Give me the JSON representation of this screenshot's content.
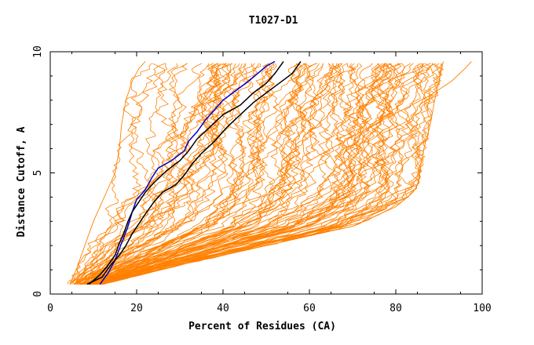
{
  "chart_data": {
    "type": "line",
    "title": "T1027-D1",
    "xlabel": "Percent of Residues (CA)",
    "ylabel": "Distance Cutoff, A",
    "xlim": [
      0,
      100
    ],
    "ylim": [
      0,
      10
    ],
    "x_ticks": [
      0,
      20,
      40,
      60,
      80,
      100
    ],
    "y_ticks": [
      0,
      5,
      10
    ],
    "grid": false,
    "legend": "none",
    "colors": {
      "background_models": "#ff8000",
      "highlight_blue": "#0000cc",
      "highlight_black": "#000000",
      "axes": "#000000"
    },
    "series": [
      {
        "name": "model-upper-envelope",
        "color": "#ff8000",
        "points": [
          [
            4.5,
            0.4
          ],
          [
            6,
            1.0
          ],
          [
            8,
            2.0
          ],
          [
            10,
            3.0
          ],
          [
            12,
            3.8
          ],
          [
            13.5,
            4.4
          ],
          [
            15,
            5.0
          ],
          [
            16,
            6.0
          ],
          [
            16.5,
            7.0
          ],
          [
            17.5,
            8.0
          ],
          [
            19,
            8.8
          ],
          [
            20.5,
            9.3
          ],
          [
            22,
            9.6
          ]
        ]
      },
      {
        "name": "model-lower-envelope",
        "color": "#ff8000",
        "points": [
          [
            12,
            0.4
          ],
          [
            30,
            1.2
          ],
          [
            55,
            2.2
          ],
          [
            70,
            2.8
          ],
          [
            80,
            3.6
          ],
          [
            84,
            4.2
          ],
          [
            85,
            4.5
          ],
          [
            86,
            5.5
          ],
          [
            86.5,
            6.0
          ],
          [
            88,
            7.0
          ],
          [
            89,
            8.0
          ],
          [
            90,
            8.8
          ],
          [
            91,
            9.6
          ]
        ]
      },
      {
        "name": "model-rightmost",
        "color": "#ff8000",
        "points": [
          [
            60,
            5.5
          ],
          [
            75,
            7.0
          ],
          [
            88,
            8.2
          ],
          [
            93,
            8.8
          ],
          [
            96,
            9.3
          ],
          [
            97.5,
            9.6
          ]
        ]
      },
      {
        "name": "highlight-model-blue",
        "color": "#0000cc",
        "points": [
          [
            11.5,
            0.4
          ],
          [
            13.5,
            0.9
          ],
          [
            15,
            1.4
          ],
          [
            16.5,
            2.1
          ],
          [
            18,
            2.8
          ],
          [
            19,
            3.4
          ],
          [
            20,
            3.9
          ],
          [
            22,
            4.3
          ],
          [
            23.5,
            4.8
          ],
          [
            25,
            5.2
          ],
          [
            28,
            5.5
          ],
          [
            31,
            5.9
          ],
          [
            32,
            6.3
          ],
          [
            34,
            6.7
          ],
          [
            36,
            7.2
          ],
          [
            38,
            7.6
          ],
          [
            40,
            8.0
          ],
          [
            43,
            8.4
          ],
          [
            46,
            8.8
          ],
          [
            48,
            9.1
          ],
          [
            50,
            9.4
          ],
          [
            52,
            9.6
          ]
        ]
      },
      {
        "name": "highlight-model-black-1",
        "color": "#000000",
        "points": [
          [
            9,
            0.4
          ],
          [
            11.5,
            0.8
          ],
          [
            13,
            1.1
          ],
          [
            15,
            1.6
          ],
          [
            16,
            2.1
          ],
          [
            17,
            2.5
          ],
          [
            18,
            3.0
          ],
          [
            19,
            3.4
          ],
          [
            20.5,
            3.8
          ],
          [
            22,
            4.2
          ],
          [
            24,
            4.6
          ],
          [
            27,
            5.1
          ],
          [
            30,
            5.5
          ],
          [
            32,
            5.9
          ],
          [
            34,
            6.4
          ],
          [
            37,
            6.9
          ],
          [
            40,
            7.4
          ],
          [
            44,
            7.8
          ],
          [
            47,
            8.3
          ],
          [
            50,
            8.7
          ],
          [
            52,
            9.1
          ],
          [
            54,
            9.6
          ]
        ]
      },
      {
        "name": "highlight-model-black-2",
        "color": "#000000",
        "points": [
          [
            8.5,
            0.4
          ],
          [
            12,
            0.7
          ],
          [
            14,
            1.2
          ],
          [
            16,
            1.6
          ],
          [
            17.5,
            2.0
          ],
          [
            19,
            2.5
          ],
          [
            20.5,
            2.9
          ],
          [
            22,
            3.3
          ],
          [
            24,
            3.8
          ],
          [
            26,
            4.2
          ],
          [
            29,
            4.5
          ],
          [
            31,
            4.9
          ],
          [
            33,
            5.4
          ],
          [
            35,
            5.8
          ],
          [
            38,
            6.3
          ],
          [
            41,
            6.9
          ],
          [
            44,
            7.4
          ],
          [
            47,
            7.9
          ],
          [
            50,
            8.3
          ],
          [
            53,
            8.7
          ],
          [
            56,
            9.1
          ],
          [
            58,
            9.6
          ]
        ]
      }
    ]
  }
}
